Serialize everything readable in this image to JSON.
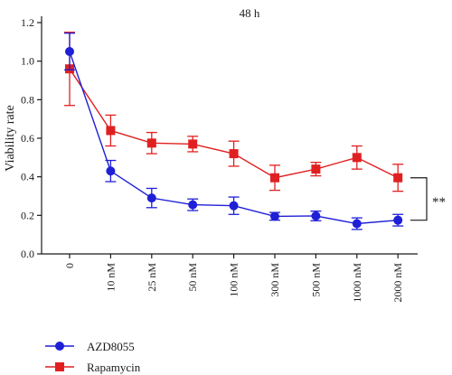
{
  "chart_data": {
    "type": "line",
    "title": "48 h",
    "xlabel": "",
    "ylabel": "Viability rate",
    "categories": [
      "0",
      "10 nM",
      "25 nM",
      "50 nM",
      "100 nM",
      "300 nM",
      "500 nM",
      "1000 nM",
      "2000 nM"
    ],
    "ylim": [
      0,
      1.2
    ],
    "yticks": [
      "0.0",
      "0.2",
      "0.4",
      "0.6",
      "0.8",
      "1.0",
      "1.2"
    ],
    "grid": false,
    "legend_position": "bottom-left",
    "series": [
      {
        "name": "AZD8055",
        "color": "#1f1fd6",
        "marker": "circle",
        "values": [
          1.05,
          0.43,
          0.29,
          0.255,
          0.25,
          0.195,
          0.197,
          0.157,
          0.175
        ],
        "errors": [
          0.095,
          0.055,
          0.05,
          0.03,
          0.045,
          0.02,
          0.025,
          0.03,
          0.03
        ]
      },
      {
        "name": "Rapamycin",
        "color": "#e02020",
        "marker": "square",
        "values": [
          0.96,
          0.64,
          0.575,
          0.57,
          0.52,
          0.395,
          0.44,
          0.5,
          0.395
        ],
        "errors": [
          0.19,
          0.08,
          0.055,
          0.04,
          0.065,
          0.065,
          0.035,
          0.06,
          0.07
        ]
      }
    ],
    "annotation": "**"
  }
}
